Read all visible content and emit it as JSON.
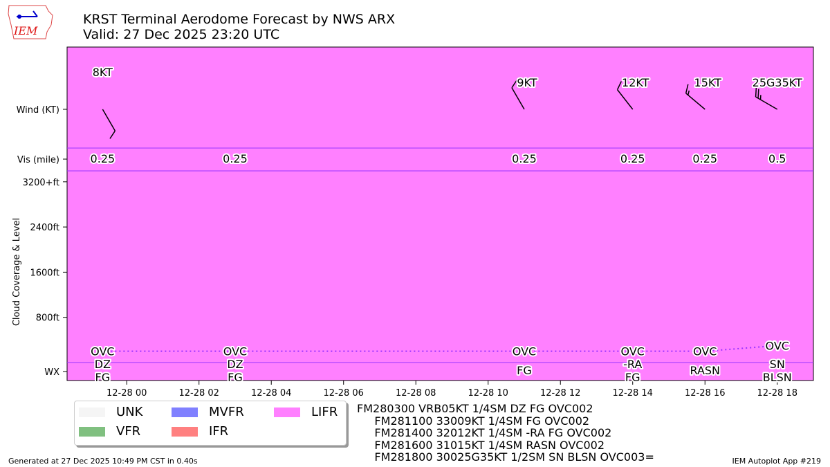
{
  "header": {
    "title": "KRST Terminal Aerodome Forecast by NWS ARX",
    "valid": "Valid: 27 Dec 2025 23:20 UTC",
    "logo_text": "IEM"
  },
  "chart_data": {
    "type": "scatter",
    "title": "KRST Terminal Aerodome Forecast by NWS ARX",
    "subtitle": "Valid: 27 Dec 2025 23:20 UTC",
    "xlabel": "",
    "ylabel": "Cloud Coverage & Level",
    "x_hours_from_1228_00_range": [
      -1.65,
      19.0
    ],
    "x_ticks": [
      {
        "h": 0,
        "label": "12-28 00"
      },
      {
        "h": 2,
        "label": "12-28 02"
      },
      {
        "h": 4,
        "label": "12-28 04"
      },
      {
        "h": 6,
        "label": "12-28 06"
      },
      {
        "h": 8,
        "label": "12-28 08"
      },
      {
        "h": 10,
        "label": "12-28 10"
      },
      {
        "h": 12,
        "label": "12-28 12"
      },
      {
        "h": 14,
        "label": "12-28 14"
      },
      {
        "h": 16,
        "label": "12-28 16"
      },
      {
        "h": 18,
        "label": "12-28 18"
      }
    ],
    "y_ticks": [
      {
        "ft": 800,
        "label": "800ft"
      },
      {
        "ft": 1600,
        "label": "1600ft"
      },
      {
        "ft": 2400,
        "label": "2400ft"
      },
      {
        "ft": 3200,
        "label": "3200+ft"
      }
    ],
    "row_labels": {
      "wind": "Wind (KT)",
      "vis": "Vis (mile)",
      "wx": "WX"
    },
    "background_category": "LIFR",
    "background_color": "#ff80ff",
    "wind": [
      {
        "h": -0.667,
        "dir": 150,
        "speed": 8,
        "label": "8KT"
      },
      {
        "h": 11,
        "dir": 330,
        "speed": 9,
        "label": "9KT"
      },
      {
        "h": 14,
        "dir": 322,
        "speed": 12,
        "label": "12KT"
      },
      {
        "h": 16,
        "dir": 310,
        "speed": 15,
        "label": "15KT"
      },
      {
        "h": 18,
        "dir": 300,
        "speed": 25,
        "label": "25G35KT"
      }
    ],
    "vis": [
      {
        "h": -0.667,
        "label": "0.25"
      },
      {
        "h": 3,
        "label": "0.25"
      },
      {
        "h": 11,
        "label": "0.25"
      },
      {
        "h": 14,
        "label": "0.25"
      },
      {
        "h": 16,
        "label": "0.25"
      },
      {
        "h": 18,
        "label": "0.5"
      }
    ],
    "clouds": [
      {
        "h": -0.667,
        "ft": 200,
        "cover": "OVC"
      },
      {
        "h": 3,
        "ft": 200,
        "cover": "OVC"
      },
      {
        "h": 11,
        "ft": 200,
        "cover": "OVC"
      },
      {
        "h": 14,
        "ft": 200,
        "cover": "OVC"
      },
      {
        "h": 16,
        "ft": 200,
        "cover": "OVC"
      },
      {
        "h": 18,
        "ft": 300,
        "cover": "OVC"
      }
    ],
    "wx": [
      {
        "h": -0.667,
        "lines": [
          "DZ",
          "FG"
        ]
      },
      {
        "h": 3,
        "lines": [
          "DZ",
          "FG"
        ]
      },
      {
        "h": 11,
        "lines": [
          "FG"
        ]
      },
      {
        "h": 14,
        "lines": [
          "-RA",
          "FG"
        ]
      },
      {
        "h": 16,
        "lines": [
          "RASN"
        ]
      },
      {
        "h": 18,
        "lines": [
          "SN",
          "BLSN"
        ]
      }
    ]
  },
  "legend": [
    {
      "label": "UNK",
      "color": "#f5f5f5"
    },
    {
      "label": "VFR",
      "color": "#80c080"
    },
    {
      "label": "MVFR",
      "color": "#8080ff"
    },
    {
      "label": "IFR",
      "color": "#ff8080"
    },
    {
      "label": "LIFR",
      "color": "#ff80ff"
    }
  ],
  "taf": [
    "FM280300 VRB05KT 1/4SM DZ FG OVC002",
    "     FM281100 33009KT 1/4SM FG OVC002",
    "     FM281400 32012KT 1/4SM -RA FG OVC002",
    "     FM281600 31015KT 1/4SM RASN OVC002",
    "     FM281800 30025G35KT 1/2SM SN BLSN OVC003="
  ],
  "footer": {
    "left": "Generated at 27 Dec 2025 10:49 PM CST in 0.40s",
    "right": "IEM Autoplot App #219"
  }
}
